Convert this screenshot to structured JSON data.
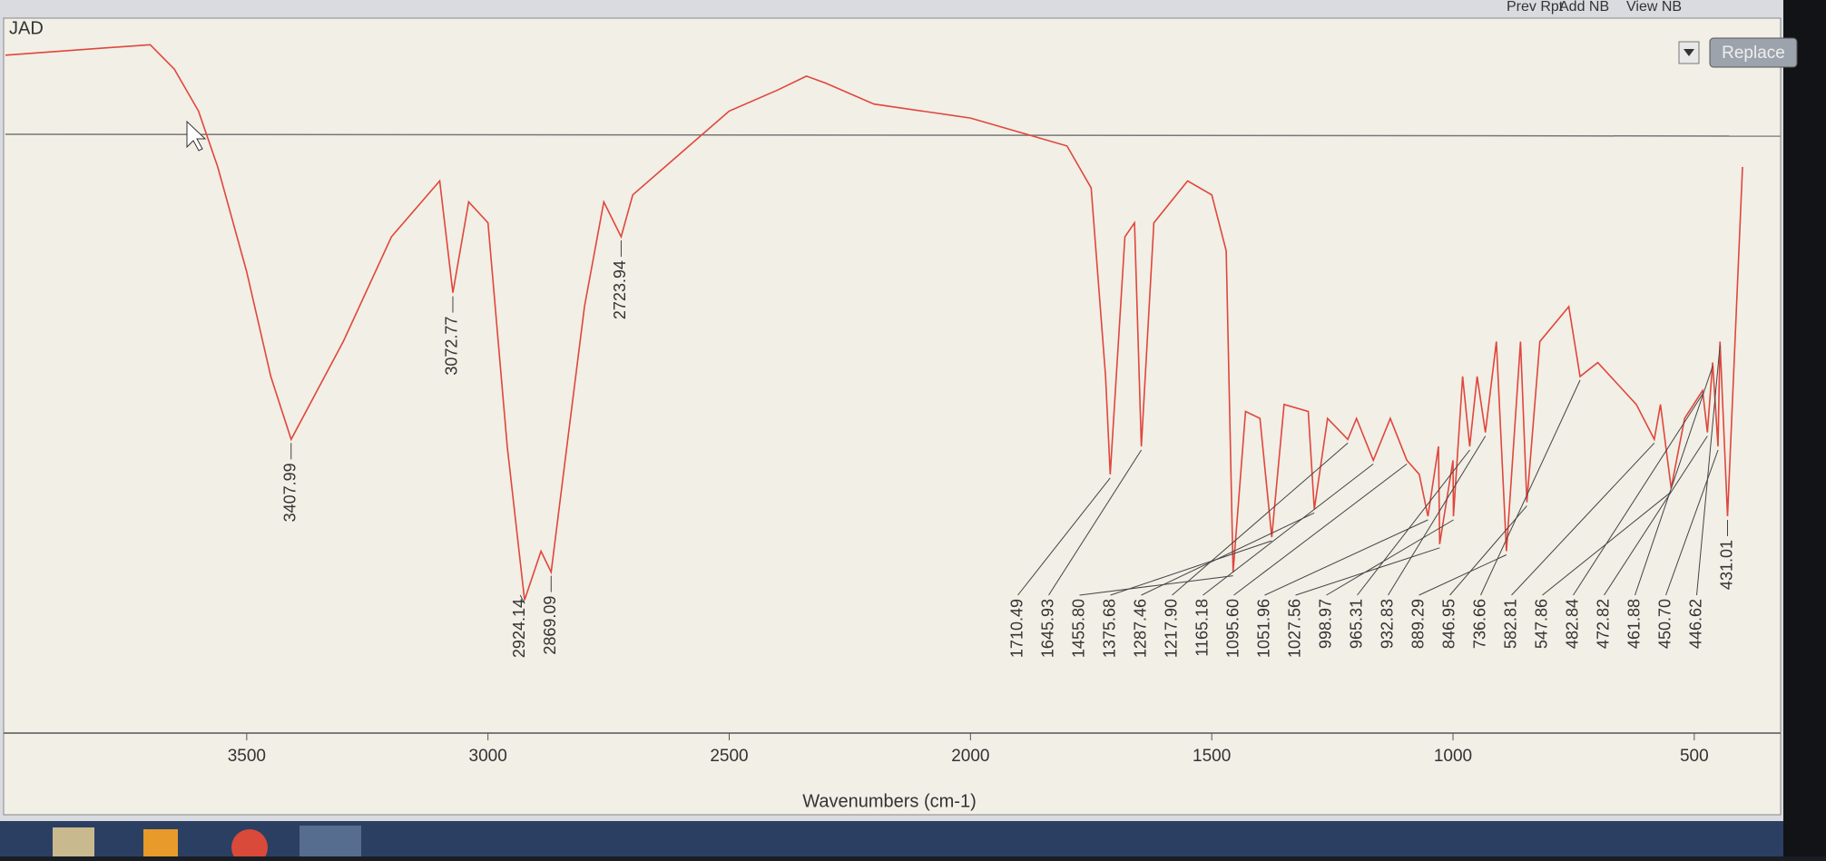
{
  "window": {
    "toolbar": [
      "Prev Rpt",
      "Add NB",
      "View NB"
    ],
    "button": "Replace"
  },
  "chart_data": {
    "type": "line",
    "title": "JAD",
    "xlabel": "Wavenumbers (cm-1)",
    "color": "#e0463c",
    "xlim": [
      4000,
      400
    ],
    "xticks": [
      3500,
      3000,
      2500,
      2000,
      1500,
      1000,
      500
    ],
    "ylim": [
      0,
      100
    ],
    "x": [
      4000,
      3800,
      3700,
      3650,
      3600,
      3560,
      3500,
      3450,
      3407.99,
      3300,
      3200,
      3100,
      3072.77,
      3040,
      3000,
      2960,
      2924.14,
      2890,
      2869.09,
      2840,
      2800,
      2760,
      2723.94,
      2700,
      2600,
      2500,
      2400,
      2340,
      2300,
      2200,
      2000,
      1800,
      1750,
      1720,
      1710.49,
      1680,
      1660,
      1645.93,
      1620,
      1550,
      1500,
      1470,
      1455.8,
      1430,
      1400,
      1375.68,
      1350,
      1300,
      1287.46,
      1260,
      1217.9,
      1200,
      1165.18,
      1130,
      1095.6,
      1070,
      1051.96,
      1030,
      1027.56,
      1000,
      998.97,
      980,
      965.31,
      950,
      932.83,
      910,
      889.29,
      860,
      846.95,
      820,
      760,
      736.66,
      700,
      620,
      582.81,
      570,
      547.86,
      520,
      482.84,
      472.82,
      461.88,
      450.7,
      446.62,
      431.01,
      400
    ],
    "values": [
      96,
      97,
      97.5,
      94,
      88,
      80,
      65,
      50,
      41,
      55,
      70,
      78,
      62,
      75,
      72,
      40,
      18,
      25,
      22,
      38,
      60,
      75,
      70,
      76,
      82,
      88,
      91,
      93,
      92,
      89,
      87,
      83,
      77,
      50,
      36,
      70,
      72,
      40,
      72,
      78,
      76,
      68,
      22,
      45,
      44,
      27,
      46,
      45,
      31,
      44,
      41,
      44,
      38,
      44,
      38,
      36,
      30,
      40,
      26,
      38,
      30,
      50,
      40,
      50,
      42,
      55,
      25,
      55,
      32,
      55,
      60,
      50,
      52,
      46,
      41,
      46,
      34,
      44,
      48,
      42,
      52,
      40,
      55,
      30,
      80
    ],
    "peak_x": [
      3407.99,
      3072.77,
      2924.14,
      2869.09,
      2723.94,
      1710.49,
      1645.93,
      1455.8,
      1375.68,
      1287.46,
      1217.9,
      1165.18,
      1095.6,
      1051.96,
      1027.56,
      998.97,
      965.31,
      932.83,
      889.29,
      846.95,
      736.66,
      582.81,
      547.86,
      482.84,
      472.82,
      461.88,
      450.7,
      446.62,
      431.01
    ],
    "peak_labels": [
      "3407.99",
      "3072.77",
      "2924.14",
      "2869.09",
      "2723.94",
      "1710.49",
      "1645.93",
      "1455.80",
      "1375.68",
      "1287.46",
      "1217.90",
      "1165.18",
      "1095.60",
      "1051.96",
      "1027.56",
      "998.97",
      "965.31",
      "932.83",
      "889.29",
      "846.95",
      "736.66",
      "582.81",
      "547.86",
      "482.84",
      "472.82",
      "461.88",
      "450.70",
      "446.62",
      "431.01"
    ]
  }
}
